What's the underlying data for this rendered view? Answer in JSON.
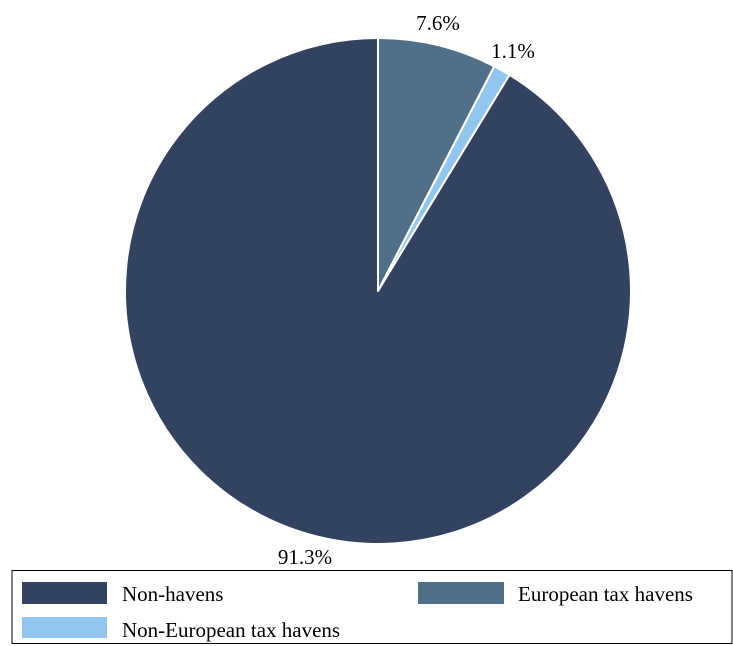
{
  "chart_data": {
    "type": "pie",
    "title": "",
    "legend_position": "bottom",
    "slices": [
      {
        "label": "European tax havens",
        "value": 7.6,
        "value_label": "7.6%",
        "color": "#4f7088"
      },
      {
        "label": "Non-European tax havens",
        "value": 1.1,
        "value_label": "1.1%",
        "color": "#93c6ee"
      },
      {
        "label": "Non-havens",
        "value": 91.3,
        "value_label": "91.3%",
        "color": "#344262"
      }
    ],
    "legend": [
      {
        "label": "Non-havens",
        "color": "#344262"
      },
      {
        "label": "European tax havens",
        "color": "#4f7088"
      },
      {
        "label": "Non-European tax havens",
        "color": "#93c6ee"
      }
    ]
  }
}
